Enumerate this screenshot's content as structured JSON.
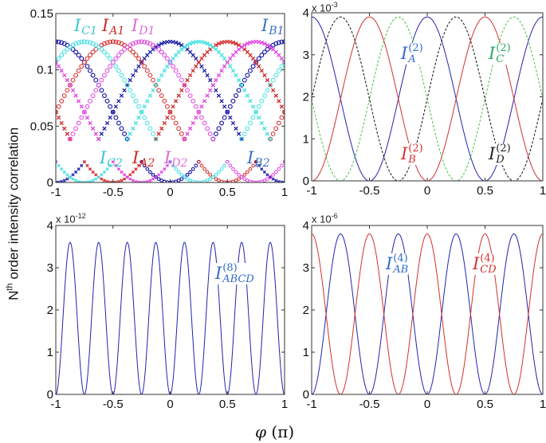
{
  "figure": {
    "ylabel_prefix": "N",
    "ylabel_sup": "th",
    "ylabel_suffix": " order intensity correlation",
    "xlabel_symbol": "φ",
    "xlabel_unit": "(π)"
  },
  "chart_data": [
    {
      "type": "scatter",
      "panel": "top-left",
      "xlim": [
        -1,
        1
      ],
      "ylim": [
        0,
        0.15
      ],
      "xticks": [
        "-1",
        "-0.5",
        "0",
        "0.5",
        "1"
      ],
      "yticks": [
        "0",
        "0.05",
        "0.1",
        "0.15"
      ],
      "ytick_values": [
        0,
        0.05,
        0.1,
        0.15
      ],
      "exponent": "",
      "model": "amplitude * cos^2(pi*(phi - peak)/period)",
      "series": [
        {
          "color": "#1c1ca8",
          "amplitude": 0.125,
          "period": 2,
          "peaks": [
            -1,
            0,
            1
          ],
          "labels": [
            {
              "main": "I",
              "sub": "B1"
            },
            {
              "main": "I",
              "sub": "B2"
            }
          ],
          "label_color": "#3a6fc4"
        },
        {
          "color": "#d42424",
          "amplitude": 0.125,
          "period": 2,
          "peaks": [
            -0.5,
            0.5
          ],
          "labels": [
            {
              "main": "I",
              "sub": "A1"
            },
            {
              "main": "I",
              "sub": "A2"
            }
          ],
          "label_color": "#cc2a2a"
        },
        {
          "color": "#3fe0e0",
          "amplitude": 0.125,
          "period": 2,
          "peaks": [
            -0.75,
            0.25
          ],
          "labels": [
            {
              "main": "I",
              "sub": "C1"
            },
            {
              "main": "I",
              "sub": "C2"
            }
          ],
          "label_color": "#38c4d4"
        },
        {
          "color": "#e040e0",
          "amplitude": 0.125,
          "period": 2,
          "peaks": [
            -0.25,
            0.75
          ],
          "labels": [
            {
              "main": "I",
              "sub": "D1"
            },
            {
              "main": "I",
              "sub": "D2"
            }
          ],
          "label_color": "#dd6ad8"
        }
      ]
    },
    {
      "type": "line",
      "panel": "top-right",
      "xlim": [
        -1,
        1
      ],
      "ylim": [
        0,
        4
      ],
      "xticks": [
        "-1",
        "-0.5",
        "0",
        "0.5",
        "1"
      ],
      "yticks": [
        "0",
        "1",
        "2",
        "3",
        "4"
      ],
      "ytick_values": [
        0,
        1,
        2,
        3,
        4
      ],
      "exponent": {
        "base": "x 10",
        "power": "-3"
      },
      "series": [
        {
          "color": "#2323b0",
          "dash": false,
          "amplitude": 3.9,
          "period": 1,
          "peaks": [
            0
          ],
          "label": {
            "main": "I",
            "sub": "A",
            "sup": "(2)"
          },
          "label_color": "#2f6cc8"
        },
        {
          "color": "#d43030",
          "dash": false,
          "amplitude": 3.9,
          "period": 1,
          "peaks": [
            0.5
          ],
          "label": {
            "main": "I",
            "sub": "B",
            "sup": "(2)"
          },
          "label_color": "#d43030"
        },
        {
          "color": "#44c444",
          "dash": true,
          "amplitude": 3.9,
          "period": 1,
          "peaks": [
            0.75
          ],
          "label": {
            "main": "I",
            "sub": "C",
            "sup": "(2)"
          },
          "label_color": "#2aa860"
        },
        {
          "color": "#111111",
          "dash": true,
          "amplitude": 3.9,
          "period": 1,
          "peaks": [
            0.25
          ],
          "label": {
            "main": "I",
            "sub": "D",
            "sup": "(2)"
          },
          "label_color": "#222222"
        }
      ]
    },
    {
      "type": "line",
      "panel": "bottom-left",
      "xlim": [
        -1,
        1
      ],
      "ylim": [
        0,
        4
      ],
      "xticks": [
        "-1",
        "-0.5",
        "0",
        "0.5",
        "1"
      ],
      "yticks": [
        "0",
        "1",
        "2",
        "3",
        "4"
      ],
      "ytick_values": [
        0,
        1,
        2,
        3,
        4
      ],
      "exponent": {
        "base": "x 10",
        "power": "-12"
      },
      "series": [
        {
          "color": "#2323b0",
          "dash": false,
          "amplitude": 3.6,
          "period": 0.25,
          "peaks": [
            0.125
          ],
          "label": {
            "main": "I",
            "sub": "ABCD",
            "sup": "(8)"
          },
          "label_color": "#2f6cc8"
        }
      ]
    },
    {
      "type": "line",
      "panel": "bottom-right",
      "xlim": [
        -1,
        1
      ],
      "ylim": [
        0,
        4
      ],
      "xticks": [
        "-1",
        "-0.5",
        "0",
        "0.5",
        "1"
      ],
      "yticks": [
        "0",
        "1",
        "2",
        "3",
        "4"
      ],
      "ytick_values": [
        0,
        1,
        2,
        3,
        4
      ],
      "exponent": {
        "base": "x 10",
        "power": "-6"
      },
      "series": [
        {
          "color": "#2323b0",
          "dash": false,
          "amplitude": 3.8,
          "period": 0.5,
          "peaks": [
            0.25
          ],
          "label": {
            "main": "I",
            "sub": "AB",
            "sup": "(4)"
          },
          "label_color": "#2f6cc8"
        },
        {
          "color": "#d43030",
          "dash": false,
          "amplitude": 3.8,
          "period": 0.5,
          "peaks": [
            0
          ],
          "label": {
            "main": "I",
            "sub": "CD",
            "sup": "(4)"
          },
          "label_color": "#d43030"
        }
      ]
    }
  ]
}
